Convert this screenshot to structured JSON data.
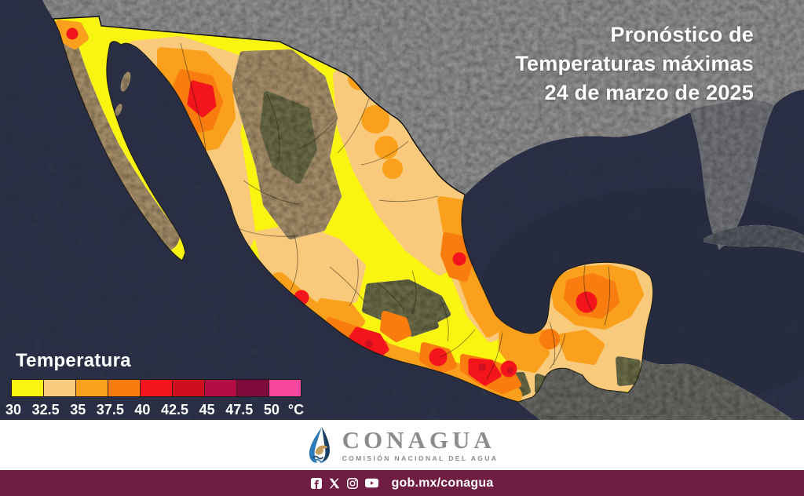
{
  "title": {
    "line1": "Pronóstico de",
    "line2": "Temperaturas máximas",
    "line3": "24 de marzo de 2025"
  },
  "legend": {
    "title": "Temperatura",
    "unit": "°C",
    "ticks": [
      "30",
      "32.5",
      "35",
      "37.5",
      "40",
      "42.5",
      "45",
      "47.5",
      "50"
    ],
    "colors": [
      "#faf411",
      "#f9ca7b",
      "#faa01c",
      "#f87d0e",
      "#f4141b",
      "#ce0f1f",
      "#b20d45",
      "#7e0b3c",
      "#f9479f"
    ]
  },
  "footer": {
    "brand": "CONAGUA",
    "brand_subtitle": "COMISIÓN NACIONAL DEL AGUA",
    "url": "gob.mx/conagua",
    "social_icons": [
      "facebook-icon",
      "x-icon",
      "instagram-icon",
      "youtube-icon"
    ]
  },
  "map": {
    "region": "México",
    "layer": "Temperatura máxima (°C)",
    "colors": {
      "ocean": "#2c3147",
      "gulf_deep": "#252a3c",
      "us_land": "#9b9b9b",
      "land_dim": "#5d6069",
      "centam_land": "#6f706b",
      "terrain_brown": "#b39a72",
      "terrain_olive": "#73744d",
      "border_line": "#15150d",
      "maroon": "#701d43",
      "logo_blue": "#2d7ab8",
      "logo_navy": "#1d3f63",
      "logo_tan": "#c59d61",
      "brand_gray": "#8a8c8e"
    }
  }
}
